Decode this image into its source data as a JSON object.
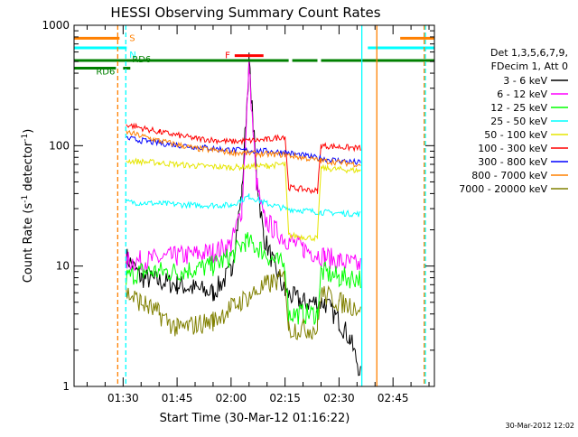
{
  "chart_data": {
    "type": "line",
    "title": "HESSI Observing Summary Count Rates",
    "xlabel": "Start Time (30-Mar-12 01:16:22)",
    "ylabel_main": "Count Rate (s",
    "ylabel_sup1": "-1",
    "ylabel_mid": " detector",
    "ylabel_sup2": "-1",
    "ylabel_end": ")",
    "yscale": "log",
    "ylim": [
      1,
      1000
    ],
    "xlim": [
      "01:16:22",
      "02:56:30"
    ],
    "x_ticks": [
      "01:30",
      "01:45",
      "02:00",
      "02:15",
      "02:30",
      "02:45"
    ],
    "y_ticks": [
      "1",
      "10",
      "100",
      "1000"
    ],
    "footer_date": "30-Mar-2012 12:02",
    "legend": {
      "placement": "right",
      "header1": "Det 1,3,5,6,7,9,",
      "header2": "FDecim 1, Att 0",
      "entries": [
        {
          "label": "3 - 6 keV",
          "color": "#000000"
        },
        {
          "label": "6 - 12 keV",
          "color": "#ff00ff"
        },
        {
          "label": "12 - 25 keV",
          "color": "#00ff00"
        },
        {
          "label": "25 - 50 keV",
          "color": "#00ffff"
        },
        {
          "label": "50 - 100 keV",
          "color": "#e6e600"
        },
        {
          "label": "100 - 300 keV",
          "color": "#ff0000"
        },
        {
          "label": "300 - 800 keV",
          "color": "#0000ff"
        },
        {
          "label": "800 - 7000 keV",
          "color": "#ff8000"
        },
        {
          "label": "7000 - 20000 keV",
          "color": "#808000"
        }
      ]
    },
    "flags": [
      {
        "label": "S",
        "color": "#ff8000",
        "level": 780,
        "segments": [
          [
            "01:16:22",
            "01:29:00"
          ],
          [
            "02:47:00",
            "02:56:30"
          ]
        ]
      },
      {
        "label": "N",
        "color": "#00ffff",
        "level": 650,
        "segments": [
          [
            "01:16:22",
            "01:31:00"
          ],
          [
            "02:38:00",
            "02:56:30"
          ]
        ]
      },
      {
        "label": "RD6",
        "color": "#008000",
        "level": 510,
        "segments": [
          [
            "01:16:22",
            "02:16:00"
          ],
          [
            "02:17:00",
            "02:24:00"
          ],
          [
            "02:25:00",
            "02:56:30"
          ]
        ]
      },
      {
        "label": "RD6",
        "color": "#008000",
        "level": 440,
        "segments": [
          [
            "01:16:22",
            "01:28:00"
          ],
          [
            "01:30:00",
            "01:32:00"
          ]
        ]
      },
      {
        "label": "F",
        "color": "#ff0000",
        "level": 560,
        "segments": [
          [
            "02:01:00",
            "02:09:00"
          ]
        ]
      }
    ],
    "vlines": [
      {
        "time": "01:28:30",
        "color": "#ff8000",
        "style": "dashed"
      },
      {
        "time": "01:30:45",
        "color": "#00ffff",
        "style": "dashed"
      },
      {
        "time": "02:36:20",
        "color": "#00ffff",
        "style": "solid"
      },
      {
        "time": "02:40:30",
        "color": "#ff8000",
        "style": "solid"
      },
      {
        "time": "02:53:40",
        "color": "#ff8000",
        "style": "dashed"
      },
      {
        "time": "02:54:00",
        "color": "#00ffff",
        "style": "dashed"
      }
    ],
    "series": [
      {
        "name": "3 - 6 keV",
        "color": "#000000",
        "points": [
          [
            "01:30:50",
            12
          ],
          [
            "01:35:00",
            8
          ],
          [
            "01:45:00",
            7
          ],
          [
            "01:55:00",
            6
          ],
          [
            "02:00:00",
            9
          ],
          [
            "02:03:00",
            40
          ],
          [
            "02:05:00",
            500
          ],
          [
            "02:07:00",
            60
          ],
          [
            "02:09:00",
            18
          ],
          [
            "02:12:00",
            10
          ],
          [
            "02:15:00",
            6
          ],
          [
            "02:20:00",
            5
          ],
          [
            "02:26:00",
            5
          ],
          [
            "02:30:00",
            3.5
          ],
          [
            "02:33:00",
            2.5
          ],
          [
            "02:36:00",
            1.3
          ]
        ]
      },
      {
        "name": "6 - 12 keV",
        "color": "#ff00ff",
        "points": [
          [
            "01:30:50",
            11
          ],
          [
            "01:35:00",
            11
          ],
          [
            "01:45:00",
            12
          ],
          [
            "01:55:00",
            13
          ],
          [
            "02:00:00",
            15
          ],
          [
            "02:03:00",
            30
          ],
          [
            "02:05:00",
            450
          ],
          [
            "02:07:00",
            50
          ],
          [
            "02:09:00",
            25
          ],
          [
            "02:12:00",
            20
          ],
          [
            "02:15:00",
            17
          ],
          [
            "02:20:00",
            14
          ],
          [
            "02:26:00",
            12
          ],
          [
            "02:30:00",
            11
          ],
          [
            "02:36:00",
            10
          ]
        ]
      },
      {
        "name": "12 - 25 keV",
        "color": "#00ff00",
        "points": [
          [
            "01:30:50",
            8
          ],
          [
            "01:35:00",
            9
          ],
          [
            "01:45:00",
            9
          ],
          [
            "01:55:00",
            10
          ],
          [
            "02:00:00",
            12
          ],
          [
            "02:04:00",
            16
          ],
          [
            "02:08:00",
            14
          ],
          [
            "02:12:00",
            11
          ],
          [
            "02:15:00",
            10
          ],
          [
            "02:16:00",
            4
          ],
          [
            "02:24:00",
            4
          ],
          [
            "02:25:00",
            9
          ],
          [
            "02:30:00",
            8
          ],
          [
            "02:36:00",
            8
          ]
        ]
      },
      {
        "name": "25 - 50 keV",
        "color": "#00ffff",
        "points": [
          [
            "01:30:50",
            34
          ],
          [
            "01:40:00",
            33
          ],
          [
            "01:50:00",
            32
          ],
          [
            "02:00:00",
            32
          ],
          [
            "02:05:00",
            38
          ],
          [
            "02:10:00",
            33
          ],
          [
            "02:15:00",
            30
          ],
          [
            "02:25:00",
            28
          ],
          [
            "02:36:00",
            27
          ]
        ]
      },
      {
        "name": "50 - 100 keV",
        "color": "#e6e600",
        "points": [
          [
            "01:30:50",
            75
          ],
          [
            "01:40:00",
            72
          ],
          [
            "01:50:00",
            68
          ],
          [
            "02:00:00",
            66
          ],
          [
            "02:10:00",
            68
          ],
          [
            "02:15:00",
            70
          ],
          [
            "02:16:00",
            18
          ],
          [
            "02:24:00",
            17
          ],
          [
            "02:25:00",
            65
          ],
          [
            "02:36:00",
            62
          ]
        ]
      },
      {
        "name": "100 - 300 keV",
        "color": "#ff0000",
        "points": [
          [
            "01:30:50",
            150
          ],
          [
            "01:40:00",
            130
          ],
          [
            "01:50:00",
            115
          ],
          [
            "02:00:00",
            108
          ],
          [
            "02:10:00",
            112
          ],
          [
            "02:15:00",
            120
          ],
          [
            "02:16:00",
            45
          ],
          [
            "02:24:00",
            42
          ],
          [
            "02:25:00",
            100
          ],
          [
            "02:36:00",
            95
          ]
        ]
      },
      {
        "name": "300 - 800 keV",
        "color": "#0000ff",
        "points": [
          [
            "01:30:50",
            115
          ],
          [
            "01:40:00",
            105
          ],
          [
            "01:50:00",
            98
          ],
          [
            "02:00:00",
            92
          ],
          [
            "02:10:00",
            90
          ],
          [
            "02:15:00",
            88
          ],
          [
            "02:25:00",
            78
          ],
          [
            "02:36:00",
            72
          ]
        ]
      },
      {
        "name": "800 - 7000 keV",
        "color": "#ff8000",
        "points": [
          [
            "01:30:50",
            130
          ],
          [
            "01:40:00",
            110
          ],
          [
            "01:50:00",
            95
          ],
          [
            "02:00:00",
            88
          ],
          [
            "02:10:00",
            85
          ],
          [
            "02:15:00",
            84
          ],
          [
            "02:25:00",
            75
          ],
          [
            "02:36:00",
            70
          ]
        ]
      },
      {
        "name": "7000 - 20000 keV",
        "color": "#808000",
        "points": [
          [
            "01:30:50",
            6
          ],
          [
            "01:35:00",
            5
          ],
          [
            "01:40:00",
            4
          ],
          [
            "01:45:00",
            3
          ],
          [
            "01:55:00",
            3.5
          ],
          [
            "02:00:00",
            4.5
          ],
          [
            "02:10:00",
            7
          ],
          [
            "02:15:00",
            8
          ],
          [
            "02:16:00",
            3
          ],
          [
            "02:24:00",
            3
          ],
          [
            "02:25:00",
            6
          ],
          [
            "02:30:00",
            5
          ],
          [
            "02:36:00",
            4.5
          ]
        ]
      }
    ]
  }
}
